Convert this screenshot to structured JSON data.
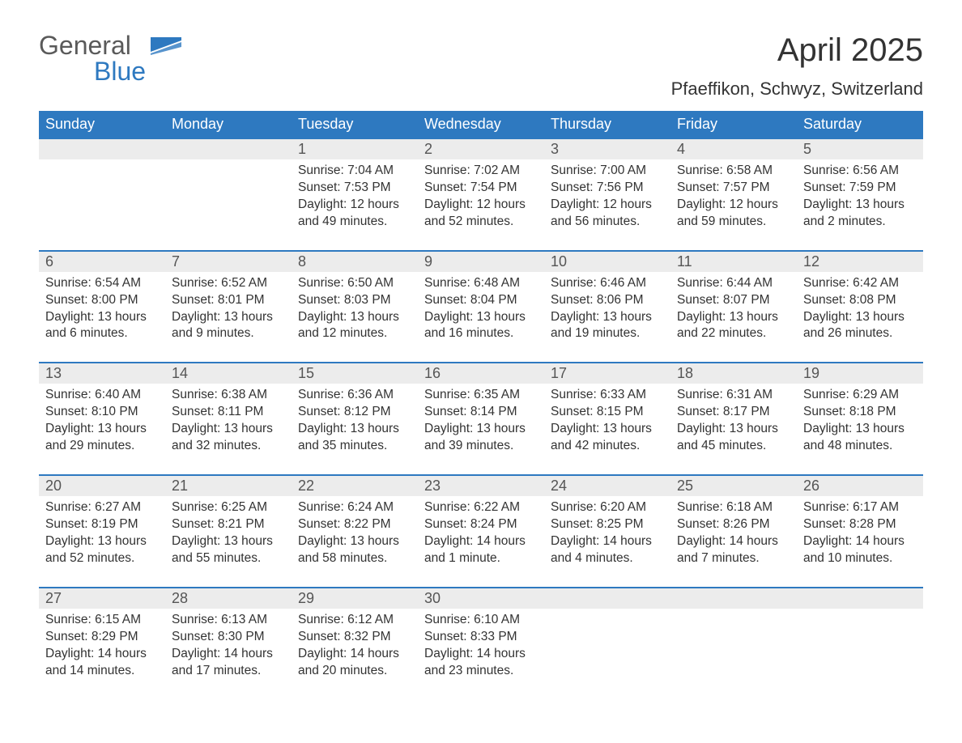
{
  "colors": {
    "header_bg": "#2e79c0",
    "header_text": "#ffffff",
    "week_border": "#2e79c0",
    "daynum_bg": "#ececec",
    "body_text": "#333333",
    "logo_gray": "#5a5a5a",
    "logo_blue": "#2e79c0",
    "page_bg": "#ffffff"
  },
  "logo": {
    "part1": "General",
    "part2": "Blue"
  },
  "title": "April 2025",
  "location": "Pfaeffikon, Schwyz, Switzerland",
  "weekdays": [
    "Sunday",
    "Monday",
    "Tuesday",
    "Wednesday",
    "Thursday",
    "Friday",
    "Saturday"
  ],
  "weeks": [
    {
      "days": [
        {
          "num": "",
          "sunrise": "",
          "sunset": "",
          "daylight1": "",
          "daylight2": ""
        },
        {
          "num": "",
          "sunrise": "",
          "sunset": "",
          "daylight1": "",
          "daylight2": ""
        },
        {
          "num": "1",
          "sunrise": "Sunrise: 7:04 AM",
          "sunset": "Sunset: 7:53 PM",
          "daylight1": "Daylight: 12 hours",
          "daylight2": "and 49 minutes."
        },
        {
          "num": "2",
          "sunrise": "Sunrise: 7:02 AM",
          "sunset": "Sunset: 7:54 PM",
          "daylight1": "Daylight: 12 hours",
          "daylight2": "and 52 minutes."
        },
        {
          "num": "3",
          "sunrise": "Sunrise: 7:00 AM",
          "sunset": "Sunset: 7:56 PM",
          "daylight1": "Daylight: 12 hours",
          "daylight2": "and 56 minutes."
        },
        {
          "num": "4",
          "sunrise": "Sunrise: 6:58 AM",
          "sunset": "Sunset: 7:57 PM",
          "daylight1": "Daylight: 12 hours",
          "daylight2": "and 59 minutes."
        },
        {
          "num": "5",
          "sunrise": "Sunrise: 6:56 AM",
          "sunset": "Sunset: 7:59 PM",
          "daylight1": "Daylight: 13 hours",
          "daylight2": "and 2 minutes."
        }
      ]
    },
    {
      "days": [
        {
          "num": "6",
          "sunrise": "Sunrise: 6:54 AM",
          "sunset": "Sunset: 8:00 PM",
          "daylight1": "Daylight: 13 hours",
          "daylight2": "and 6 minutes."
        },
        {
          "num": "7",
          "sunrise": "Sunrise: 6:52 AM",
          "sunset": "Sunset: 8:01 PM",
          "daylight1": "Daylight: 13 hours",
          "daylight2": "and 9 minutes."
        },
        {
          "num": "8",
          "sunrise": "Sunrise: 6:50 AM",
          "sunset": "Sunset: 8:03 PM",
          "daylight1": "Daylight: 13 hours",
          "daylight2": "and 12 minutes."
        },
        {
          "num": "9",
          "sunrise": "Sunrise: 6:48 AM",
          "sunset": "Sunset: 8:04 PM",
          "daylight1": "Daylight: 13 hours",
          "daylight2": "and 16 minutes."
        },
        {
          "num": "10",
          "sunrise": "Sunrise: 6:46 AM",
          "sunset": "Sunset: 8:06 PM",
          "daylight1": "Daylight: 13 hours",
          "daylight2": "and 19 minutes."
        },
        {
          "num": "11",
          "sunrise": "Sunrise: 6:44 AM",
          "sunset": "Sunset: 8:07 PM",
          "daylight1": "Daylight: 13 hours",
          "daylight2": "and 22 minutes."
        },
        {
          "num": "12",
          "sunrise": "Sunrise: 6:42 AM",
          "sunset": "Sunset: 8:08 PM",
          "daylight1": "Daylight: 13 hours",
          "daylight2": "and 26 minutes."
        }
      ]
    },
    {
      "days": [
        {
          "num": "13",
          "sunrise": "Sunrise: 6:40 AM",
          "sunset": "Sunset: 8:10 PM",
          "daylight1": "Daylight: 13 hours",
          "daylight2": "and 29 minutes."
        },
        {
          "num": "14",
          "sunrise": "Sunrise: 6:38 AM",
          "sunset": "Sunset: 8:11 PM",
          "daylight1": "Daylight: 13 hours",
          "daylight2": "and 32 minutes."
        },
        {
          "num": "15",
          "sunrise": "Sunrise: 6:36 AM",
          "sunset": "Sunset: 8:12 PM",
          "daylight1": "Daylight: 13 hours",
          "daylight2": "and 35 minutes."
        },
        {
          "num": "16",
          "sunrise": "Sunrise: 6:35 AM",
          "sunset": "Sunset: 8:14 PM",
          "daylight1": "Daylight: 13 hours",
          "daylight2": "and 39 minutes."
        },
        {
          "num": "17",
          "sunrise": "Sunrise: 6:33 AM",
          "sunset": "Sunset: 8:15 PM",
          "daylight1": "Daylight: 13 hours",
          "daylight2": "and 42 minutes."
        },
        {
          "num": "18",
          "sunrise": "Sunrise: 6:31 AM",
          "sunset": "Sunset: 8:17 PM",
          "daylight1": "Daylight: 13 hours",
          "daylight2": "and 45 minutes."
        },
        {
          "num": "19",
          "sunrise": "Sunrise: 6:29 AM",
          "sunset": "Sunset: 8:18 PM",
          "daylight1": "Daylight: 13 hours",
          "daylight2": "and 48 minutes."
        }
      ]
    },
    {
      "days": [
        {
          "num": "20",
          "sunrise": "Sunrise: 6:27 AM",
          "sunset": "Sunset: 8:19 PM",
          "daylight1": "Daylight: 13 hours",
          "daylight2": "and 52 minutes."
        },
        {
          "num": "21",
          "sunrise": "Sunrise: 6:25 AM",
          "sunset": "Sunset: 8:21 PM",
          "daylight1": "Daylight: 13 hours",
          "daylight2": "and 55 minutes."
        },
        {
          "num": "22",
          "sunrise": "Sunrise: 6:24 AM",
          "sunset": "Sunset: 8:22 PM",
          "daylight1": "Daylight: 13 hours",
          "daylight2": "and 58 minutes."
        },
        {
          "num": "23",
          "sunrise": "Sunrise: 6:22 AM",
          "sunset": "Sunset: 8:24 PM",
          "daylight1": "Daylight: 14 hours",
          "daylight2": "and 1 minute."
        },
        {
          "num": "24",
          "sunrise": "Sunrise: 6:20 AM",
          "sunset": "Sunset: 8:25 PM",
          "daylight1": "Daylight: 14 hours",
          "daylight2": "and 4 minutes."
        },
        {
          "num": "25",
          "sunrise": "Sunrise: 6:18 AM",
          "sunset": "Sunset: 8:26 PM",
          "daylight1": "Daylight: 14 hours",
          "daylight2": "and 7 minutes."
        },
        {
          "num": "26",
          "sunrise": "Sunrise: 6:17 AM",
          "sunset": "Sunset: 8:28 PM",
          "daylight1": "Daylight: 14 hours",
          "daylight2": "and 10 minutes."
        }
      ]
    },
    {
      "days": [
        {
          "num": "27",
          "sunrise": "Sunrise: 6:15 AM",
          "sunset": "Sunset: 8:29 PM",
          "daylight1": "Daylight: 14 hours",
          "daylight2": "and 14 minutes."
        },
        {
          "num": "28",
          "sunrise": "Sunrise: 6:13 AM",
          "sunset": "Sunset: 8:30 PM",
          "daylight1": "Daylight: 14 hours",
          "daylight2": "and 17 minutes."
        },
        {
          "num": "29",
          "sunrise": "Sunrise: 6:12 AM",
          "sunset": "Sunset: 8:32 PM",
          "daylight1": "Daylight: 14 hours",
          "daylight2": "and 20 minutes."
        },
        {
          "num": "30",
          "sunrise": "Sunrise: 6:10 AM",
          "sunset": "Sunset: 8:33 PM",
          "daylight1": "Daylight: 14 hours",
          "daylight2": "and 23 minutes."
        },
        {
          "num": "",
          "sunrise": "",
          "sunset": "",
          "daylight1": "",
          "daylight2": ""
        },
        {
          "num": "",
          "sunrise": "",
          "sunset": "",
          "daylight1": "",
          "daylight2": ""
        },
        {
          "num": "",
          "sunrise": "",
          "sunset": "",
          "daylight1": "",
          "daylight2": ""
        }
      ]
    }
  ]
}
